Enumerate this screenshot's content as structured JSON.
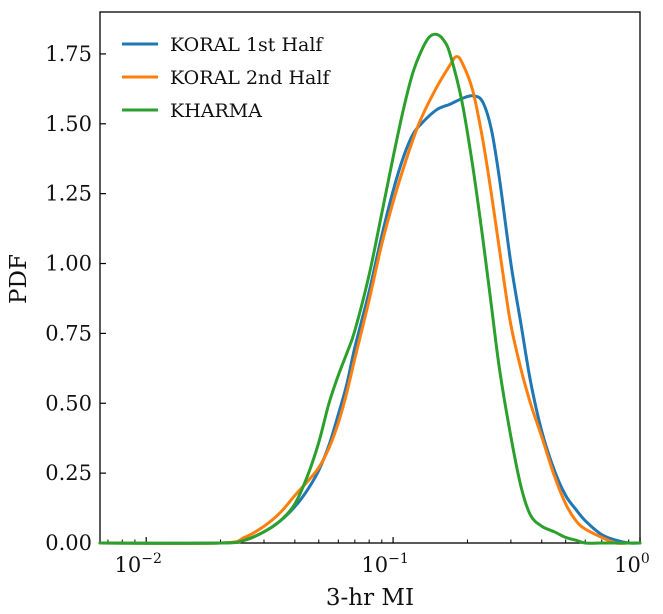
{
  "chart_data": {
    "type": "line",
    "title": "",
    "xlabel": "3-hr MI",
    "ylabel": "PDF",
    "xscale": "log",
    "xlim": [
      0.0065,
      1.0
    ],
    "ylim": [
      0,
      1.9
    ],
    "grid": false,
    "legend_position": "top-left",
    "x_ticks": [
      {
        "value": 0.01,
        "base": "10",
        "exp": "−2"
      },
      {
        "value": 0.1,
        "base": "10",
        "exp": "−1"
      },
      {
        "value": 1.0,
        "base": "10",
        "exp": "0"
      }
    ],
    "y_ticks": [
      "0.00",
      "0.25",
      "0.50",
      "0.75",
      "1.00",
      "1.25",
      "1.50",
      "1.75"
    ],
    "series": [
      {
        "name": "KORAL 1st Half",
        "color": "#1f77b4",
        "x": [
          0.0065,
          0.02,
          0.025,
          0.03,
          0.035,
          0.04,
          0.045,
          0.05,
          0.055,
          0.06,
          0.065,
          0.07,
          0.08,
          0.09,
          0.1,
          0.11,
          0.12,
          0.13,
          0.15,
          0.17,
          0.19,
          0.21,
          0.23,
          0.25,
          0.27,
          0.3,
          0.33,
          0.36,
          0.4,
          0.45,
          0.5,
          0.55,
          0.6,
          0.7,
          0.8,
          0.9,
          1.0
        ],
        "y": [
          0.0,
          0.0,
          0.01,
          0.04,
          0.08,
          0.13,
          0.19,
          0.26,
          0.35,
          0.46,
          0.57,
          0.7,
          0.9,
          1.1,
          1.26,
          1.38,
          1.46,
          1.5,
          1.55,
          1.57,
          1.59,
          1.6,
          1.58,
          1.48,
          1.3,
          1.0,
          0.78,
          0.58,
          0.4,
          0.26,
          0.17,
          0.12,
          0.08,
          0.03,
          0.01,
          0.0,
          0.0
        ]
      },
      {
        "name": "KORAL 2nd Half",
        "color": "#ff7f0e",
        "x": [
          0.0065,
          0.02,
          0.025,
          0.03,
          0.035,
          0.04,
          0.045,
          0.05,
          0.055,
          0.06,
          0.065,
          0.07,
          0.08,
          0.09,
          0.1,
          0.11,
          0.12,
          0.13,
          0.15,
          0.17,
          0.18,
          0.19,
          0.21,
          0.23,
          0.25,
          0.28,
          0.3,
          0.33,
          0.36,
          0.4,
          0.45,
          0.5,
          0.55,
          0.6,
          0.7,
          0.8,
          0.9,
          1.0
        ],
        "y": [
          0.0,
          0.0,
          0.02,
          0.06,
          0.11,
          0.17,
          0.22,
          0.27,
          0.34,
          0.43,
          0.54,
          0.66,
          0.87,
          1.07,
          1.22,
          1.34,
          1.44,
          1.52,
          1.63,
          1.71,
          1.74,
          1.72,
          1.62,
          1.45,
          1.25,
          0.95,
          0.78,
          0.62,
          0.5,
          0.38,
          0.24,
          0.14,
          0.08,
          0.05,
          0.02,
          0.0,
          0.0,
          0.0
        ]
      },
      {
        "name": "KHARMA",
        "color": "#2ca02c",
        "x": [
          0.0065,
          0.02,
          0.025,
          0.03,
          0.035,
          0.04,
          0.045,
          0.05,
          0.055,
          0.06,
          0.065,
          0.07,
          0.08,
          0.09,
          0.1,
          0.11,
          0.12,
          0.13,
          0.14,
          0.15,
          0.16,
          0.17,
          0.19,
          0.21,
          0.23,
          0.25,
          0.27,
          0.3,
          0.33,
          0.36,
          0.4,
          0.45,
          0.5,
          0.55,
          0.6,
          0.7,
          0.8,
          1.0
        ],
        "y": [
          0.0,
          0.0,
          0.01,
          0.04,
          0.08,
          0.14,
          0.24,
          0.36,
          0.5,
          0.6,
          0.68,
          0.76,
          0.96,
          1.18,
          1.38,
          1.55,
          1.68,
          1.76,
          1.81,
          1.82,
          1.8,
          1.75,
          1.58,
          1.35,
          1.1,
          0.85,
          0.62,
          0.38,
          0.2,
          0.1,
          0.06,
          0.04,
          0.02,
          0.01,
          0.0,
          0.0,
          0.0,
          0.0
        ]
      }
    ]
  }
}
